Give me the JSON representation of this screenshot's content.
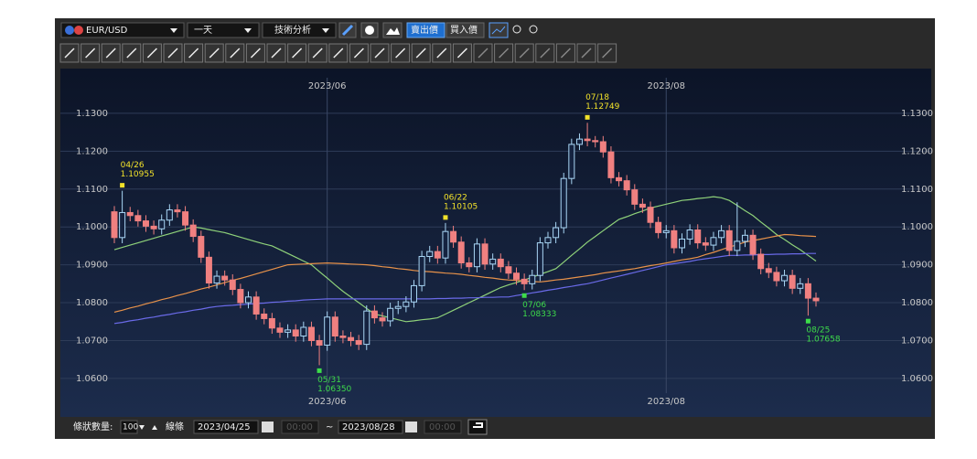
{
  "toolbar": {
    "symbol": "EUR/USD",
    "period": "一天",
    "analysis": "技術分析",
    "sell": "賣出價",
    "buy": "買入價"
  },
  "footer": {
    "count_label": "條狀數量:",
    "count": "100",
    "line_label": "線條",
    "from_date": "2023/04/25",
    "from_time": "00:00",
    "separator": "~",
    "to_date": "2023/08/28",
    "to_time": "00:00"
  },
  "chart_data": {
    "type": "candlestick",
    "categories": [
      null,
      null,
      null,
      null,
      null,
      null,
      null,
      null,
      null,
      null,
      null,
      null,
      null,
      null,
      null,
      null,
      null,
      null,
      null,
      null,
      null,
      null,
      null,
      null,
      null,
      null,
      null,
      "2023/06",
      null,
      null,
      null,
      null,
      null,
      null,
      null,
      null,
      null,
      null,
      null,
      null,
      null,
      null,
      null,
      null,
      null,
      null,
      null,
      null,
      null,
      null,
      null,
      null,
      null,
      null,
      null,
      null,
      null,
      null,
      null,
      null,
      null,
      null,
      null,
      null,
      null,
      null,
      null,
      null,
      null,
      null,
      "2023/08",
      null,
      null,
      null,
      null,
      null,
      null,
      null,
      null,
      null,
      null,
      null,
      null,
      null,
      null,
      null,
      null,
      null,
      null,
      null
    ],
    "open": [
      1.104,
      1.0972,
      1.1038,
      1.103,
      1.1016,
      1.1002,
      1.0995,
      1.1018,
      1.1045,
      1.104,
      1.1005,
      1.0975,
      1.092,
      1.0852,
      1.087,
      1.086,
      1.0835,
      1.08,
      1.0815,
      1.077,
      1.0758,
      1.0733,
      1.0722,
      1.0728,
      1.0712,
      1.0735,
      1.07,
      1.0688,
      1.0762,
      1.0712,
      1.0708,
      1.07,
      1.069,
      1.0778,
      1.076,
      1.0752,
      1.0785,
      1.079,
      1.0802,
      1.0845,
      1.0922,
      1.0935,
      1.0918,
      1.0988,
      1.096,
      1.0905,
      1.0895,
      1.0955,
      1.0902,
      1.0915,
      1.0895,
      1.0878,
      1.0862,
      1.085,
      1.0872,
      1.0958,
      1.0972,
      1.0998,
      1.1128,
      1.1218,
      1.1232,
      1.1228,
      1.1225,
      1.1198,
      1.113,
      1.1122,
      1.1098,
      1.106,
      1.1052,
      1.1012,
      1.0985,
      1.099,
      1.0945,
      1.0968,
      1.0992,
      1.0958,
      1.0952,
      1.0972,
      1.099,
      1.0938,
      1.0962,
      1.0978,
      1.0928,
      1.089,
      1.088,
      1.0858,
      1.0872,
      1.0838,
      1.085,
      1.0812
    ],
    "high": [
      1.1055,
      1.10955,
      1.1053,
      1.1045,
      1.1031,
      1.1017,
      1.1033,
      1.106,
      1.106,
      1.1055,
      1.102,
      1.099,
      1.0935,
      1.0885,
      1.0885,
      1.0875,
      1.085,
      1.083,
      1.083,
      1.0785,
      1.0773,
      1.0748,
      1.0743,
      1.0743,
      1.075,
      1.075,
      1.0715,
      1.0777,
      1.0777,
      1.0727,
      1.0723,
      1.0715,
      1.0793,
      1.0793,
      1.0775,
      1.08,
      1.0805,
      1.0817,
      1.086,
      1.0937,
      1.095,
      1.095,
      1.10105,
      1.1003,
      1.0975,
      1.092,
      1.097,
      1.097,
      1.093,
      1.093,
      1.091,
      1.0893,
      1.0877,
      1.0887,
      1.0973,
      1.0987,
      1.1013,
      1.1143,
      1.1233,
      1.1247,
      1.12749,
      1.124,
      1.124,
      1.1213,
      1.1145,
      1.1137,
      1.1113,
      1.1075,
      1.1067,
      1.1027,
      1.1005,
      1.1005,
      1.0983,
      1.1007,
      1.1007,
      1.0973,
      1.0987,
      1.1005,
      1.1005,
      1.1065,
      1.0993,
      1.0993,
      1.0943,
      1.0905,
      1.0895,
      1.0887,
      1.0887,
      1.0865,
      1.0865,
      1.0827
    ],
    "low": [
      1.0957,
      1.0957,
      1.1015,
      1.1001,
      1.0987,
      1.098,
      1.098,
      1.1003,
      1.1025,
      1.099,
      1.096,
      1.0905,
      1.0837,
      1.0837,
      1.0845,
      1.082,
      1.0785,
      1.0785,
      1.0755,
      1.0743,
      1.0718,
      1.0707,
      1.0707,
      1.0697,
      1.0697,
      1.0685,
      1.0635,
      1.0673,
      1.0697,
      1.0693,
      1.0685,
      1.0675,
      1.0675,
      1.0745,
      1.0737,
      1.0737,
      1.077,
      1.0775,
      1.0787,
      1.083,
      1.0907,
      1.0903,
      1.0903,
      1.0945,
      1.089,
      1.088,
      1.088,
      1.0887,
      1.0887,
      1.088,
      1.0863,
      1.0847,
      1.08333,
      1.0835,
      1.0857,
      1.0943,
      1.0957,
      1.0983,
      1.1113,
      1.1203,
      1.1213,
      1.121,
      1.1183,
      1.1115,
      1.1107,
      1.1083,
      1.1045,
      1.1037,
      1.0997,
      1.097,
      1.097,
      1.093,
      1.093,
      1.0953,
      1.0943,
      1.0937,
      1.0937,
      1.0957,
      1.0923,
      1.0923,
      1.0947,
      1.0913,
      1.0875,
      1.0865,
      1.0843,
      1.0843,
      1.0823,
      1.0823,
      1.07658,
      1.079
    ],
    "close": [
      1.0972,
      1.1038,
      1.103,
      1.1016,
      1.1002,
      1.0995,
      1.1018,
      1.1045,
      1.104,
      1.1005,
      1.0975,
      1.092,
      1.0852,
      1.087,
      1.086,
      1.0835,
      1.08,
      1.0815,
      1.077,
      1.0758,
      1.0733,
      1.0722,
      1.0728,
      1.0712,
      1.0735,
      1.07,
      1.0688,
      1.0762,
      1.0712,
      1.0708,
      1.07,
      1.069,
      1.0778,
      1.076,
      1.0752,
      1.0785,
      1.079,
      1.0802,
      1.0845,
      1.0922,
      1.0935,
      1.0918,
      1.0988,
      1.096,
      1.0905,
      1.0895,
      1.0955,
      1.0902,
      1.0915,
      1.0895,
      1.0878,
      1.0862,
      1.085,
      1.0872,
      1.0958,
      1.0972,
      1.0998,
      1.1128,
      1.1218,
      1.1232,
      1.1228,
      1.1225,
      1.1198,
      1.113,
      1.1122,
      1.1098,
      1.106,
      1.1052,
      1.1012,
      1.0985,
      1.099,
      1.0945,
      1.0968,
      1.0992,
      1.0958,
      1.0952,
      1.0972,
      1.099,
      1.0938,
      1.0962,
      1.0978,
      1.0928,
      1.089,
      1.088,
      1.0858,
      1.0872,
      1.0838,
      1.085,
      1.0812,
      1.0805
    ],
    "up_color": "#a9d6f5",
    "down_color": "#f08080",
    "overlays": [
      {
        "color": "#8fd27a",
        "values": [
          1.094,
          1.0946,
          1.0952,
          1.0958,
          1.0964,
          1.097,
          1.0976,
          1.0982,
          1.0988,
          1.0994,
          1.1,
          1.0997,
          1.0993,
          1.0989,
          1.0985,
          1.0979,
          1.0973,
          1.0967,
          1.0961,
          1.0955,
          1.095,
          1.094,
          1.093,
          1.092,
          1.091,
          1.09,
          1.0882,
          1.0865,
          1.0847,
          1.083,
          1.0815,
          1.08,
          1.0785,
          1.077,
          1.0765,
          1.076,
          1.0755,
          1.075,
          1.0752,
          1.0755,
          1.0757,
          1.076,
          1.077,
          1.078,
          1.079,
          1.08,
          1.081,
          1.082,
          1.083,
          1.084,
          1.0847,
          1.0853,
          1.086,
          1.0867,
          1.0875,
          1.0882,
          1.089,
          1.0907,
          1.0925,
          1.0942,
          1.096,
          1.0975,
          1.099,
          1.1005,
          1.102,
          1.1027,
          1.1035,
          1.1042,
          1.105,
          1.1055,
          1.106,
          1.1065,
          1.107,
          1.1072,
          1.1075,
          1.1077,
          1.108,
          1.1077,
          1.107,
          1.1057,
          1.1043,
          1.103,
          1.1013,
          1.0997,
          1.098,
          1.0967,
          1.0953,
          1.094,
          1.0925,
          1.091
        ]
      },
      {
        "color": "#e8924a",
        "values": [
          1.0775,
          1.078,
          1.0786,
          1.0791,
          1.0797,
          1.0802,
          1.0808,
          1.0813,
          1.0819,
          1.0824,
          1.083,
          1.0836,
          1.0841,
          1.0847,
          1.0853,
          1.0859,
          1.0864,
          1.087,
          1.0876,
          1.0882,
          1.0888,
          1.0894,
          1.09,
          1.0901,
          1.0902,
          1.0903,
          1.0904,
          1.0905,
          1.0904,
          1.0903,
          1.0902,
          1.0901,
          1.09,
          1.0898,
          1.0895,
          1.0893,
          1.089,
          1.0888,
          1.0885,
          1.0883,
          1.0882,
          1.088,
          1.0878,
          1.0877,
          1.0875,
          1.0872,
          1.087,
          1.0867,
          1.0865,
          1.0862,
          1.086,
          1.0859,
          1.0857,
          1.0856,
          1.0855,
          1.0857,
          1.086,
          1.0862,
          1.0865,
          1.0868,
          1.0871,
          1.0874,
          1.0878,
          1.0881,
          1.0884,
          1.0887,
          1.089,
          1.0894,
          1.0898,
          1.0901,
          1.0905,
          1.0909,
          1.0913,
          1.0916,
          1.092,
          1.0927,
          1.0933,
          1.094,
          1.0947,
          1.0953,
          1.096,
          1.0964,
          1.0968,
          1.0972,
          1.0976,
          1.098,
          1.0979,
          1.0977,
          1.0976,
          1.0975
        ]
      },
      {
        "color": "#6a6ae8",
        "values": [
          1.0745,
          1.0748,
          1.0752,
          1.0755,
          1.0759,
          1.0762,
          1.0766,
          1.0769,
          1.0773,
          1.0776,
          1.078,
          1.0783,
          1.0787,
          1.079,
          1.0792,
          1.0793,
          1.0795,
          1.0796,
          1.0798,
          1.0799,
          1.0801,
          1.0802,
          1.0804,
          1.0805,
          1.0807,
          1.0808,
          1.0809,
          1.081,
          1.081,
          1.081,
          1.081,
          1.081,
          1.081,
          1.081,
          1.081,
          1.081,
          1.081,
          1.081,
          1.081,
          1.081,
          1.081,
          1.0811,
          1.0811,
          1.0812,
          1.0812,
          1.0813,
          1.0813,
          1.0814,
          1.0814,
          1.0815,
          1.0815,
          1.0819,
          1.0822,
          1.0826,
          1.0829,
          1.0833,
          1.0836,
          1.084,
          1.0843,
          1.0847,
          1.085,
          1.0855,
          1.086,
          1.0865,
          1.087,
          1.0875,
          1.088,
          1.0885,
          1.089,
          1.0895,
          1.09,
          1.0903,
          1.0906,
          1.0909,
          1.0913,
          1.0916,
          1.0919,
          1.0922,
          1.0925,
          1.0925,
          1.0926,
          1.0926,
          1.0927,
          1.0927,
          1.0928,
          1.0928,
          1.0929,
          1.0929,
          1.093,
          1.093
        ]
      }
    ],
    "annotations": [
      {
        "date": "04/26",
        "value": 1.10955
      },
      {
        "date": "05/31",
        "value": 1.0635,
        "label": "1.06350"
      },
      {
        "date": "06/22",
        "value": 1.10105
      },
      {
        "date": "07/06",
        "value": 1.08333
      },
      {
        "date": "07/18",
        "value": 1.12749
      },
      {
        "date": "08/25",
        "value": 1.07658
      }
    ],
    "high_color": "#f2e22a",
    "low_color": "#3ddc4a",
    "ylim": [
      1.0508,
      1.1394
    ],
    "yticks": [
      {
        "value": 1.06,
        "label": "1.0600"
      },
      {
        "value": 1.07,
        "label": "1.0700"
      },
      {
        "value": 1.08,
        "label": "1.0800"
      },
      {
        "value": 1.09,
        "label": "1.0900"
      },
      {
        "value": 1.1,
        "label": "1.1000"
      },
      {
        "value": 1.11,
        "label": "1.1100"
      },
      {
        "value": 1.12,
        "label": "1.1200"
      },
      {
        "value": 1.13,
        "label": "1.1300"
      }
    ],
    "grid": true
  }
}
